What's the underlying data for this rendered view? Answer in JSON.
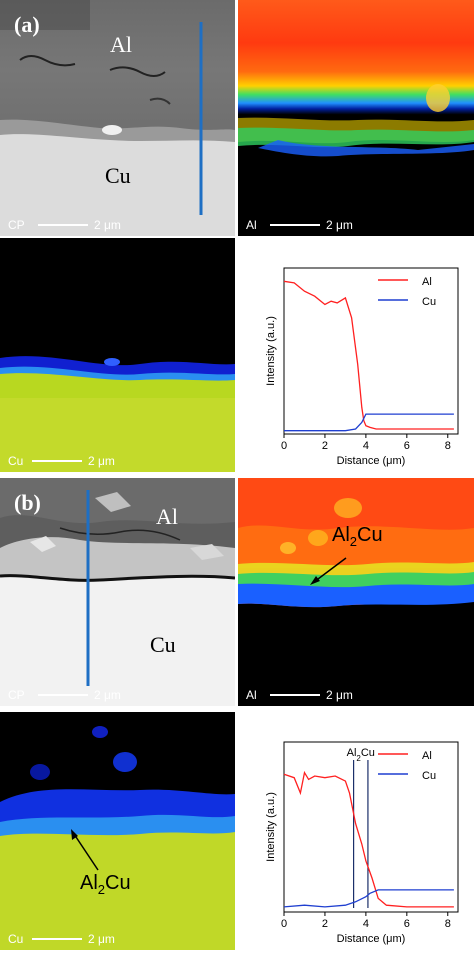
{
  "panel_a": {
    "label": "(a)",
    "cp_image": {
      "mat_top": "Al",
      "mat_bottom": "Cu",
      "scale_label": "CP",
      "scale_text": "2 μm"
    },
    "al_map": {
      "scale_label": "Al",
      "scale_text": "2 μm"
    },
    "cu_map": {
      "scale_label": "Cu",
      "scale_text": "2 μm"
    },
    "plot": {
      "xlabel": "Distance (μm)",
      "ylabel": "Intensity (a.u.)",
      "xticks": [
        "0",
        "2",
        "4",
        "6",
        "8"
      ],
      "legend": [
        "Al",
        "Cu"
      ]
    }
  },
  "panel_b": {
    "label": "(b)",
    "cp_image": {
      "mat_top": "Al",
      "mat_bottom": "Cu",
      "scale_label": "CP",
      "scale_text": "2 μm"
    },
    "al_map": {
      "annotation": "Al",
      "annotation_sub": "2",
      "annotation_suffix": "Cu",
      "scale_label": "Al",
      "scale_text": "2 μm"
    },
    "cu_map": {
      "annotation": "Al",
      "annotation_sub": "2",
      "annotation_suffix": "Cu",
      "scale_label": "Cu",
      "scale_text": "2 μm"
    },
    "plot": {
      "xlabel": "Distance (μm)",
      "ylabel": "Intensity (a.u.)",
      "xticks": [
        "0",
        "2",
        "4",
        "6",
        "8"
      ],
      "legend": [
        "Al",
        "Cu"
      ],
      "annotation": "Al",
      "annotation_sub": "2",
      "annotation_suffix": "Cu"
    }
  },
  "colors": {
    "al_line": "#ff2020",
    "cu_line": "#1f3fd0"
  },
  "chart_data": [
    {
      "type": "line",
      "xlabel": "Distance (μm)",
      "ylabel": "Intensity (a.u.)",
      "xlim": [
        0,
        8.5
      ],
      "ylim": [
        0,
        1.0
      ],
      "series": [
        {
          "name": "Al",
          "x": [
            0,
            0.5,
            1.0,
            1.5,
            2.0,
            2.3,
            2.6,
            3.0,
            3.3,
            3.6,
            3.8,
            3.9,
            4.0,
            4.2,
            4.5,
            5.0,
            6.0,
            7.0,
            8.3
          ],
          "values": [
            0.92,
            0.91,
            0.86,
            0.83,
            0.78,
            0.8,
            0.79,
            0.82,
            0.7,
            0.42,
            0.16,
            0.08,
            0.05,
            0.04,
            0.03,
            0.03,
            0.03,
            0.03,
            0.03
          ]
        },
        {
          "name": "Cu",
          "x": [
            0,
            1,
            2,
            3,
            3.5,
            3.8,
            4.0,
            4.3,
            5.0,
            6.0,
            7.0,
            8.3
          ],
          "values": [
            0.02,
            0.02,
            0.02,
            0.02,
            0.03,
            0.07,
            0.12,
            0.12,
            0.12,
            0.12,
            0.12,
            0.12
          ]
        }
      ]
    },
    {
      "type": "line",
      "xlabel": "Distance (μm)",
      "ylabel": "Intensity (a.u.)",
      "xlim": [
        0,
        8.5
      ],
      "ylim": [
        0,
        1.0
      ],
      "vlines": [
        3.4,
        4.1
      ],
      "series": [
        {
          "name": "Al",
          "x": [
            0,
            0.5,
            0.8,
            1.0,
            1.2,
            1.5,
            2.0,
            2.5,
            3.0,
            3.2,
            3.5,
            3.8,
            4.0,
            4.3,
            4.6,
            5.0,
            6.0,
            7.0,
            8.3
          ],
          "values": [
            0.81,
            0.79,
            0.7,
            0.82,
            0.78,
            0.8,
            0.79,
            0.8,
            0.77,
            0.7,
            0.52,
            0.4,
            0.3,
            0.2,
            0.08,
            0.04,
            0.03,
            0.03,
            0.03
          ]
        },
        {
          "name": "Cu",
          "x": [
            0,
            1,
            2,
            3,
            3.5,
            4.0,
            4.2,
            4.6,
            5.0,
            6.0,
            7.0,
            8.3
          ],
          "values": [
            0.03,
            0.04,
            0.03,
            0.04,
            0.06,
            0.09,
            0.11,
            0.13,
            0.13,
            0.13,
            0.13,
            0.13
          ]
        }
      ]
    }
  ]
}
